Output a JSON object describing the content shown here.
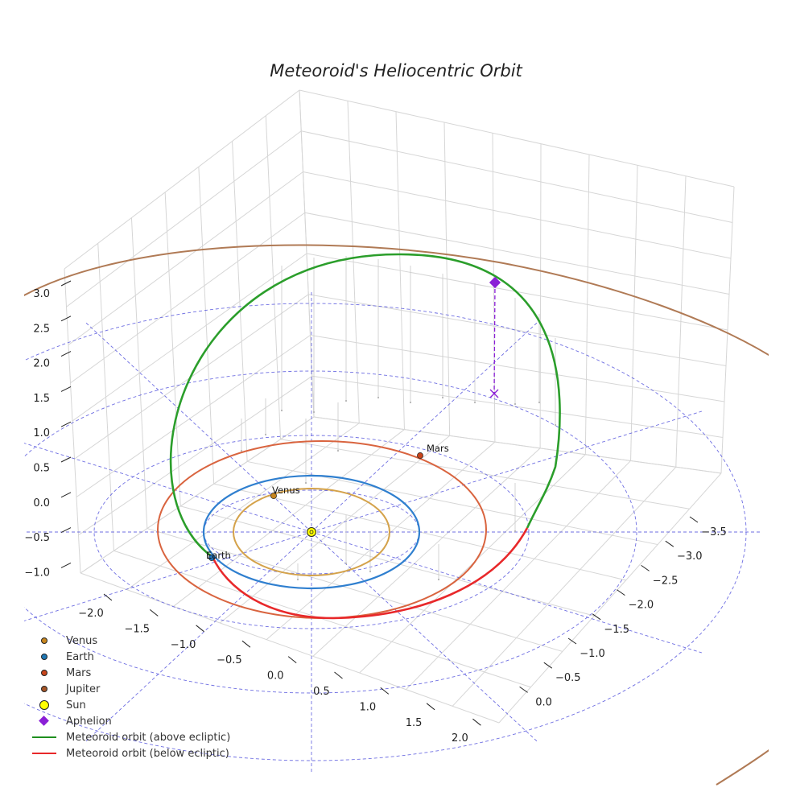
{
  "chart_data": {
    "type": "line",
    "title": "Meteoroid's Heliocentric Orbit",
    "axes": {
      "x_ticks": [
        "−2.0",
        "−1.5",
        "−1.0",
        "−0.5",
        "0.0",
        "0.5",
        "1.0",
        "1.5",
        "2.0"
      ],
      "y_ticks": [
        "−3.5",
        "−3.0",
        "−2.5",
        "−2.0",
        "−1.5",
        "−1.0",
        "−0.5",
        "0.0"
      ],
      "z_ticks": [
        "3.0",
        "2.5",
        "2.0",
        "1.5",
        "1.0",
        "0.5",
        "0.0",
        "−0.5",
        "−1.0"
      ],
      "grid": true
    },
    "planets": [
      {
        "name": "Venus",
        "label": "Venus",
        "color": "#c8861e",
        "orbit_color": "#d4a24a"
      },
      {
        "name": "Earth",
        "label": "Earth",
        "color": "#1f6fb4",
        "orbit_color": "#2f7fcf"
      },
      {
        "name": "Mars",
        "label": "Mars",
        "color": "#c8451b",
        "orbit_color": "#d9643f"
      },
      {
        "name": "Jupiter",
        "label": "",
        "color": "#a65628",
        "orbit_color": "#b07a55"
      }
    ],
    "sun": {
      "name": "Sun",
      "color": "#ffff00"
    },
    "aphelion": {
      "name": "Aphelion",
      "color": "#8a1fd6"
    },
    "series": [
      {
        "name": "Meteoroid orbit (above ecliptic)",
        "color": "#2ca02c"
      },
      {
        "name": "Meteoroid orbit (below ecliptic)",
        "color": "#e8282a"
      }
    ],
    "reference_color": "#5555dd",
    "legend_placement": "bottom-left"
  },
  "legend": [
    {
      "label": "Venus",
      "kind": "dot",
      "color": "#c8861e"
    },
    {
      "label": "Earth",
      "kind": "dot",
      "color": "#1f77b4"
    },
    {
      "label": "Mars",
      "kind": "dot",
      "color": "#c8451b"
    },
    {
      "label": "Jupiter",
      "kind": "dot",
      "color": "#a65628"
    },
    {
      "label": "Sun",
      "kind": "bigdot",
      "color": "#ffff00"
    },
    {
      "label": "Aphelion",
      "kind": "diamond",
      "color": "#8a1fd6"
    },
    {
      "label": "Meteoroid orbit (above ecliptic)",
      "kind": "line",
      "color": "#1f8f1f"
    },
    {
      "label": "Meteoroid orbit (below ecliptic)",
      "kind": "line",
      "color": "#e8282a"
    }
  ]
}
